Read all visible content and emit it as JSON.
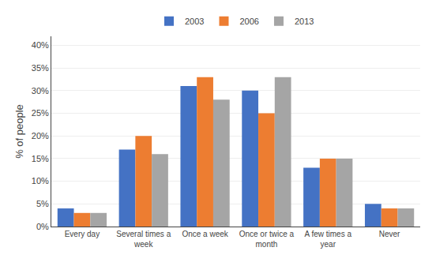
{
  "chart_data": {
    "type": "bar",
    "categories": [
      "Every day",
      "Several times a\nweek",
      "Once a week",
      "Once or twice a\nmonth",
      "A few times a\nyear",
      "Never"
    ],
    "series": [
      {
        "name": "2003",
        "color": "#4472C4",
        "values": [
          4,
          17,
          31,
          30,
          13,
          5
        ]
      },
      {
        "name": "2006",
        "color": "#ED7D31",
        "values": [
          3,
          20,
          33,
          25,
          15,
          4
        ]
      },
      {
        "name": "2013",
        "color": "#A5A5A5",
        "values": [
          3,
          16,
          28,
          33,
          15,
          4
        ]
      }
    ],
    "ylabel": "% of people",
    "ylim": [
      0,
      42
    ],
    "yticks": [
      {
        "value": 0,
        "label": "0%"
      },
      {
        "value": 5,
        "label": "5%"
      },
      {
        "value": 10,
        "label": "10%"
      },
      {
        "value": 15,
        "label": "15%"
      },
      {
        "value": 20,
        "label": "20%"
      },
      {
        "value": 25,
        "label": "25%"
      },
      {
        "value": 30,
        "label": "30%"
      },
      {
        "value": 35,
        "label": "35%"
      },
      {
        "value": 40,
        "label": "40%"
      }
    ],
    "grid": true,
    "legend": "top"
  }
}
